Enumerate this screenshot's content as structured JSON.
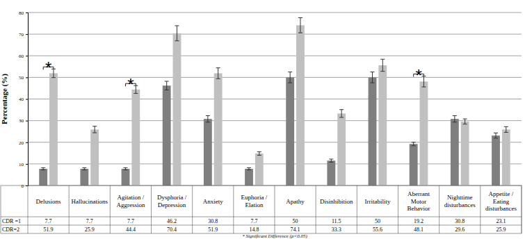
{
  "chart_data": {
    "type": "bar",
    "y_label": "Percentage (%)",
    "categories": [
      "Delusions",
      "Hallucinations",
      "Agitation / Aggression",
      "Dysphoria / Depression",
      "Anxiety",
      "Euphoria / Elation",
      "Apathy",
      "Disinhibition",
      "Irritability",
      "Aberrant Motor Behavior",
      "Nighttime disturbances",
      "Appetite / Eating disturbances"
    ],
    "series": [
      {
        "name": "CDR =1",
        "color": "#7f7f7f",
        "values": [
          7.7,
          7.7,
          7.7,
          46.2,
          30.8,
          7.7,
          50,
          11.5,
          50,
          19.2,
          30.8,
          23.1
        ],
        "errors": [
          0.5,
          0.5,
          0.5,
          2,
          1.5,
          0.5,
          2.5,
          0.7,
          2.5,
          0.8,
          1.5,
          1.2
        ]
      },
      {
        "name": "CDR=2",
        "color": "#c0c0c0",
        "values": [
          51.9,
          25.9,
          44.4,
          70.4,
          51.9,
          14.8,
          74.1,
          33.3,
          55.6,
          48.1,
          29.6,
          25.9
        ],
        "errors": [
          2,
          1.5,
          1.8,
          3.5,
          2.5,
          0.8,
          3.5,
          1.8,
          2.8,
          2.5,
          1.2,
          1.3
        ]
      }
    ],
    "ylim": [
      0,
      80
    ],
    "yticks": [
      0,
      10,
      20,
      30,
      40,
      50,
      60,
      70,
      80
    ],
    "grid": true,
    "data_labels": true,
    "annotations": [
      {
        "text": "*",
        "category": "Delusions"
      },
      {
        "text": "*",
        "category": "Agitation / Aggression"
      },
      {
        "text": "*",
        "category": "Aberrant Motor Behavior"
      }
    ],
    "footnote": "* Significant Difference (p<0.05)"
  }
}
